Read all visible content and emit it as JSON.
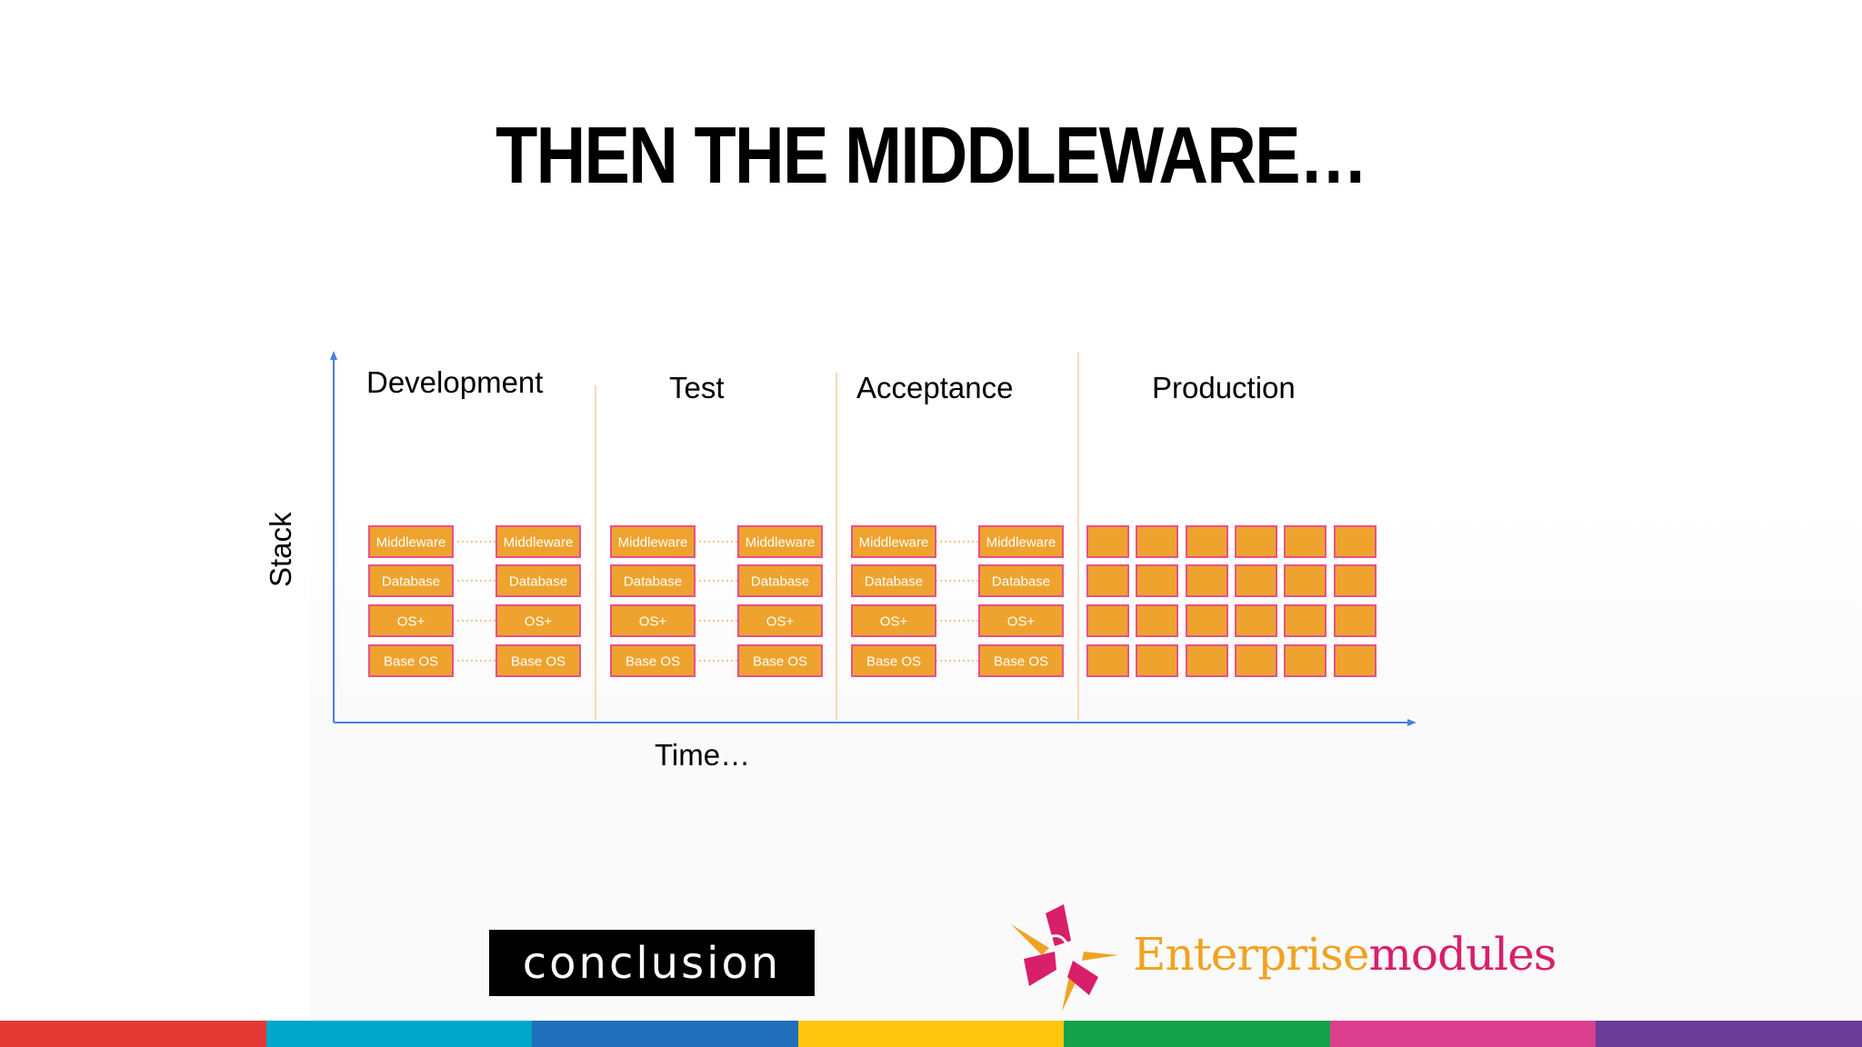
{
  "slide": {
    "title": "THEN THE MIDDLEWARE…"
  },
  "diagram": {
    "axis": {
      "y_label": "Stack",
      "x_label": "Time…"
    },
    "phases": [
      {
        "label": "Development",
        "columns": 2,
        "labeled": true
      },
      {
        "label": "Test",
        "columns": 2,
        "labeled": true
      },
      {
        "label": "Acceptance",
        "columns": 2,
        "labeled": true
      },
      {
        "label": "Production",
        "columns": 6,
        "labeled": false
      }
    ],
    "layers": [
      "Middleware",
      "Database",
      "OS+",
      "Base OS"
    ],
    "colors": {
      "box_fill": "#eea32e",
      "box_border": "#e8508a",
      "axis": "#4a7fe0",
      "divider": "#f0cfa0",
      "connector": "#e9b36a"
    }
  },
  "logos": {
    "conclusion": "conclusion",
    "enterprise_part1": "Enterprise",
    "enterprise_part2": "modules"
  },
  "stripes": [
    "#e53935",
    "#00a7c8",
    "#1f6fba",
    "#ffc50d",
    "#13a14a",
    "#dd3f8f",
    "#6a3d98"
  ]
}
